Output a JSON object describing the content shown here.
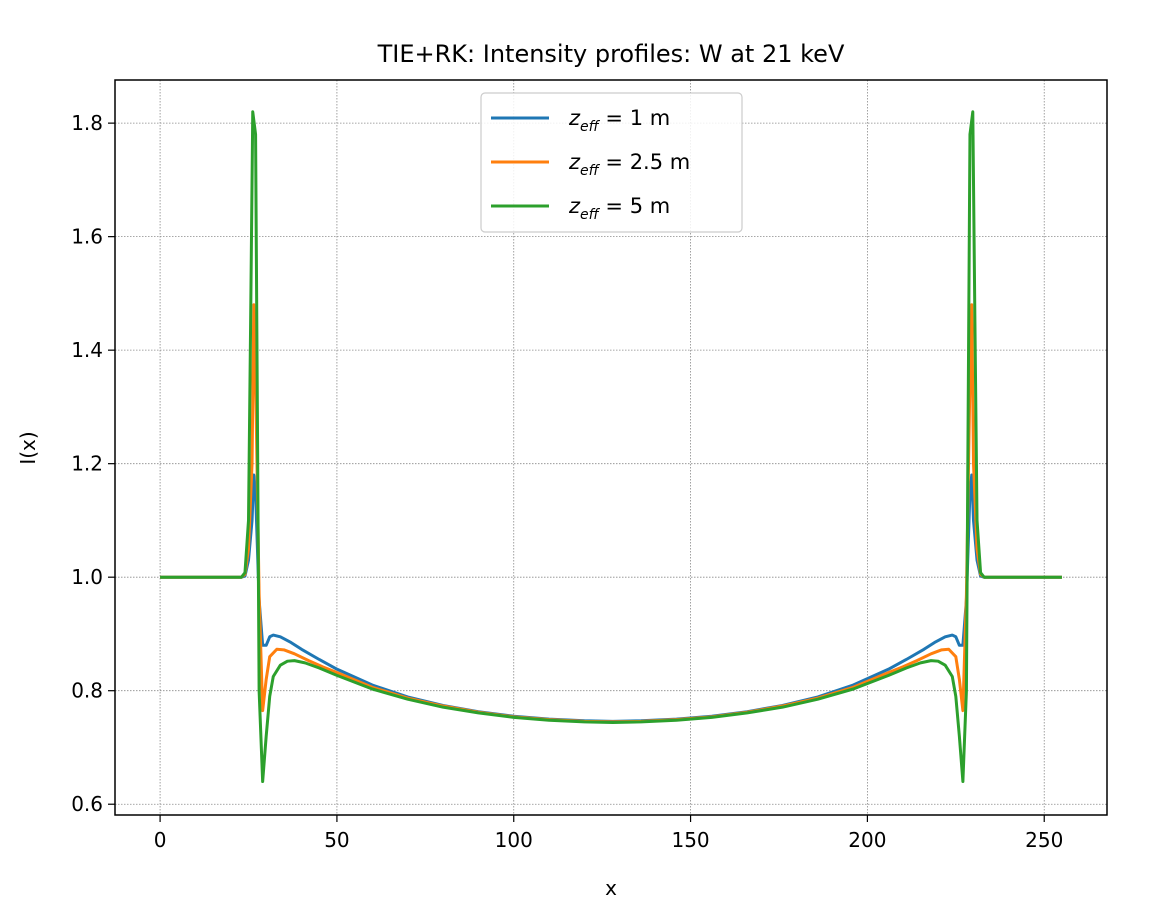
{
  "chart_data": {
    "type": "line",
    "title": "TIE+RK: Intensity profiles: W at 21 keV",
    "xlabel": "x",
    "ylabel": "I(x)",
    "xlim": [
      -12.75,
      267.75
    ],
    "ylim": [
      0.581,
      1.876
    ],
    "xticks": [
      0,
      50,
      100,
      150,
      200,
      250
    ],
    "yticks": [
      0.6,
      0.8,
      1.0,
      1.2,
      1.4,
      1.6,
      1.8
    ],
    "xtick_labels": [
      "0",
      "50",
      "100",
      "150",
      "200",
      "250"
    ],
    "ytick_labels": [
      "0.6",
      "0.8",
      "1.0",
      "1.2",
      "1.4",
      "1.6",
      "1.8"
    ],
    "grid": true,
    "legend_position": "upper-center",
    "series": [
      {
        "name": "z_eff = 1 m",
        "legend_symbol": "z",
        "legend_subscript": "eff",
        "legend_suffix": " = 1 m",
        "color": "#1f77b4",
        "points": [
          [
            0,
            1.0
          ],
          [
            23,
            1.0
          ],
          [
            24,
            1.002
          ],
          [
            25,
            1.03
          ],
          [
            26,
            1.1
          ],
          [
            26.5,
            1.18
          ],
          [
            27,
            1.15
          ],
          [
            28,
            0.96
          ],
          [
            29,
            0.88
          ],
          [
            30,
            0.88
          ],
          [
            31,
            0.895
          ],
          [
            32,
            0.898
          ],
          [
            34,
            0.895
          ],
          [
            37,
            0.885
          ],
          [
            40,
            0.873
          ],
          [
            45,
            0.855
          ],
          [
            50,
            0.838
          ],
          [
            60,
            0.81
          ],
          [
            70,
            0.789
          ],
          [
            80,
            0.774
          ],
          [
            90,
            0.763
          ],
          [
            100,
            0.755
          ],
          [
            110,
            0.75
          ],
          [
            120,
            0.747
          ],
          [
            128,
            0.746
          ],
          [
            136,
            0.747
          ],
          [
            146,
            0.75
          ],
          [
            156,
            0.755
          ],
          [
            166,
            0.763
          ],
          [
            176,
            0.774
          ],
          [
            186,
            0.789
          ],
          [
            196,
            0.81
          ],
          [
            206,
            0.838
          ],
          [
            211,
            0.855
          ],
          [
            216,
            0.873
          ],
          [
            219,
            0.885
          ],
          [
            222,
            0.895
          ],
          [
            224,
            0.898
          ],
          [
            225,
            0.895
          ],
          [
            226,
            0.88
          ],
          [
            227,
            0.88
          ],
          [
            228,
            0.96
          ],
          [
            229,
            1.15
          ],
          [
            229.5,
            1.18
          ],
          [
            230,
            1.1
          ],
          [
            231,
            1.03
          ],
          [
            232,
            1.002
          ],
          [
            233,
            1.0
          ],
          [
            255,
            1.0
          ]
        ]
      },
      {
        "name": "z_eff = 2.5 m",
        "legend_symbol": "z",
        "legend_subscript": "eff",
        "legend_suffix": " = 2.5 m",
        "color": "#ff7f0e",
        "points": [
          [
            0,
            1.0
          ],
          [
            23,
            1.0
          ],
          [
            24,
            1.005
          ],
          [
            25,
            1.05
          ],
          [
            26,
            1.2
          ],
          [
            26.5,
            1.48
          ],
          [
            27,
            1.35
          ],
          [
            28,
            0.97
          ],
          [
            29,
            0.765
          ],
          [
            30,
            0.82
          ],
          [
            31,
            0.86
          ],
          [
            33,
            0.873
          ],
          [
            35,
            0.872
          ],
          [
            38,
            0.865
          ],
          [
            42,
            0.853
          ],
          [
            46,
            0.842
          ],
          [
            50,
            0.832
          ],
          [
            60,
            0.806
          ],
          [
            70,
            0.787
          ],
          [
            80,
            0.773
          ],
          [
            90,
            0.762
          ],
          [
            100,
            0.754
          ],
          [
            110,
            0.749
          ],
          [
            120,
            0.746
          ],
          [
            128,
            0.745
          ],
          [
            136,
            0.746
          ],
          [
            146,
            0.749
          ],
          [
            156,
            0.754
          ],
          [
            166,
            0.762
          ],
          [
            176,
            0.773
          ],
          [
            186,
            0.787
          ],
          [
            196,
            0.806
          ],
          [
            206,
            0.832
          ],
          [
            210,
            0.842
          ],
          [
            214,
            0.853
          ],
          [
            218,
            0.865
          ],
          [
            221,
            0.872
          ],
          [
            223,
            0.873
          ],
          [
            225,
            0.86
          ],
          [
            226,
            0.82
          ],
          [
            227,
            0.765
          ],
          [
            228,
            0.97
          ],
          [
            229,
            1.35
          ],
          [
            229.5,
            1.48
          ],
          [
            230,
            1.2
          ],
          [
            231,
            1.05
          ],
          [
            232,
            1.005
          ],
          [
            233,
            1.0
          ],
          [
            255,
            1.0
          ]
        ]
      },
      {
        "name": "z_eff = 5 m",
        "legend_symbol": "z",
        "legend_subscript": "eff",
        "legend_suffix": " = 5 m",
        "color": "#2ca02c",
        "points": [
          [
            0,
            1.0
          ],
          [
            23,
            1.0
          ],
          [
            24,
            1.008
          ],
          [
            25,
            1.1
          ],
          [
            25.6,
            1.45
          ],
          [
            26.2,
            1.82
          ],
          [
            27,
            1.78
          ],
          [
            27.5,
            1.3
          ],
          [
            28,
            0.8
          ],
          [
            29,
            0.64
          ],
          [
            30,
            0.72
          ],
          [
            31,
            0.79
          ],
          [
            32,
            0.825
          ],
          [
            34,
            0.845
          ],
          [
            36,
            0.852
          ],
          [
            38,
            0.853
          ],
          [
            41,
            0.849
          ],
          [
            45,
            0.84
          ],
          [
            50,
            0.827
          ],
          [
            60,
            0.803
          ],
          [
            70,
            0.785
          ],
          [
            80,
            0.771
          ],
          [
            90,
            0.761
          ],
          [
            100,
            0.753
          ],
          [
            110,
            0.748
          ],
          [
            120,
            0.745
          ],
          [
            128,
            0.744
          ],
          [
            136,
            0.745
          ],
          [
            146,
            0.748
          ],
          [
            156,
            0.753
          ],
          [
            166,
            0.761
          ],
          [
            176,
            0.771
          ],
          [
            186,
            0.785
          ],
          [
            196,
            0.803
          ],
          [
            206,
            0.827
          ],
          [
            211,
            0.84
          ],
          [
            215,
            0.849
          ],
          [
            218,
            0.853
          ],
          [
            220,
            0.852
          ],
          [
            222,
            0.845
          ],
          [
            224,
            0.825
          ],
          [
            225,
            0.79
          ],
          [
            226,
            0.72
          ],
          [
            227,
            0.64
          ],
          [
            228,
            0.8
          ],
          [
            228.5,
            1.3
          ],
          [
            229,
            1.78
          ],
          [
            229.8,
            1.82
          ],
          [
            230.4,
            1.45
          ],
          [
            231,
            1.1
          ],
          [
            232,
            1.008
          ],
          [
            233,
            1.0
          ],
          [
            255,
            1.0
          ]
        ]
      }
    ]
  }
}
